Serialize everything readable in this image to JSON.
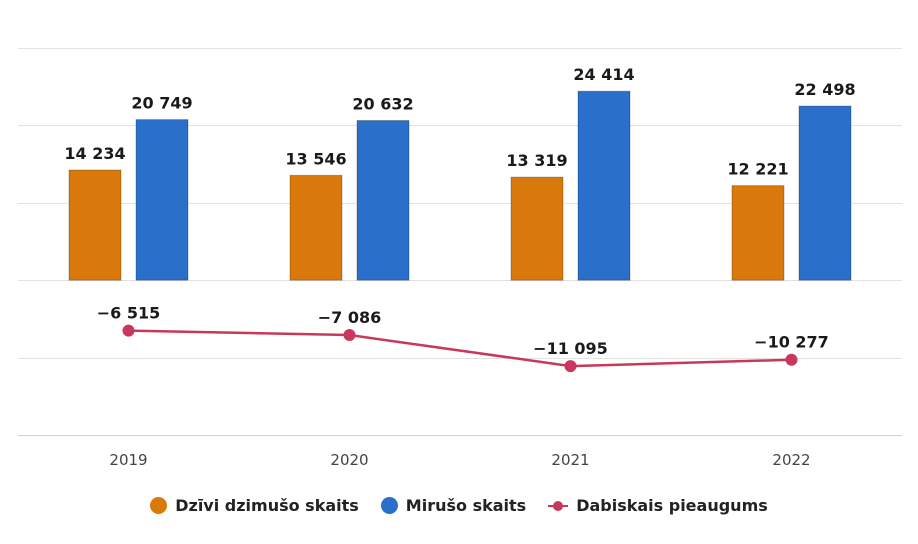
{
  "chart_data": {
    "type": "bar",
    "categories": [
      "2019",
      "2020",
      "2021",
      "2022"
    ],
    "series": [
      {
        "name": "Dzīvi dzimušo skaits",
        "type": "bar",
        "color": "#D9780B",
        "values": [
          14234,
          13546,
          13319,
          12221
        ],
        "labels": [
          "14 234",
          "13 546",
          "13 319",
          "12 221"
        ]
      },
      {
        "name": "Mirušo skaits",
        "type": "bar",
        "color": "#2A6FC9",
        "values": [
          20749,
          20632,
          24414,
          22498
        ],
        "labels": [
          "20 749",
          "20 632",
          "24 414",
          "22 498"
        ]
      },
      {
        "name": "Dabiskais pieaugums",
        "type": "line",
        "color": "#C8385C",
        "values": [
          -6515,
          -7086,
          -11095,
          -10277
        ],
        "labels": [
          "−6 515",
          "−7 086",
          "−11 095",
          "−10 277"
        ]
      }
    ],
    "ylim": [
      -20000,
      30000
    ],
    "grid": true,
    "legend_position": "bottom"
  }
}
